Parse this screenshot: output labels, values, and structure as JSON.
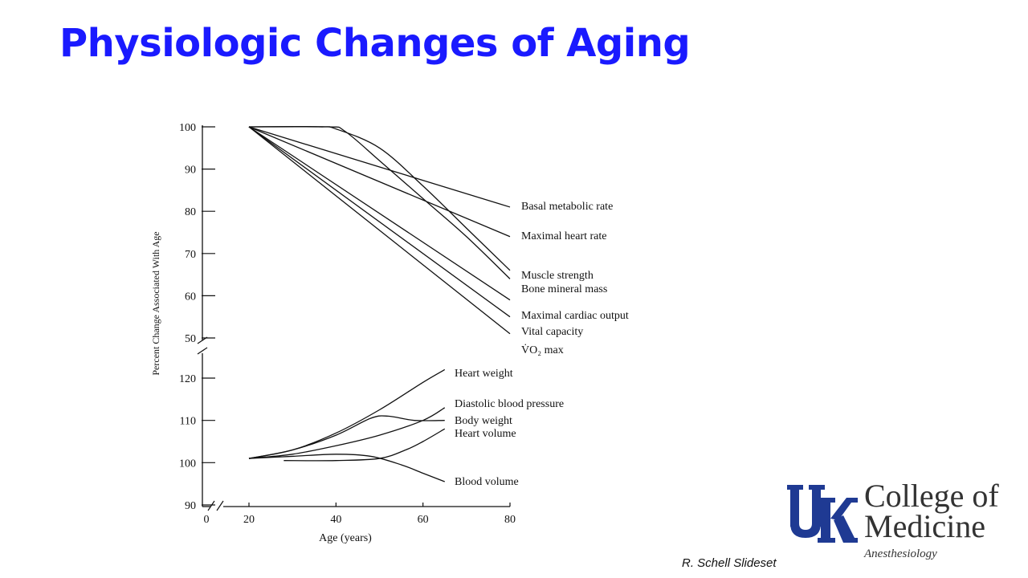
{
  "slide": {
    "title": "Physiologic Changes of Aging",
    "credit": "R. Schell Slideset"
  },
  "logo": {
    "line1": "College of",
    "line2": "Medicine",
    "department": "Anesthesiology",
    "monogram": "UK",
    "color": "#1f3a93"
  },
  "chart_data": {
    "type": "line",
    "title": "",
    "xlabel": "Age (years)",
    "ylabel": "Percent Change Associated With Age",
    "x_ticks": [
      "0",
      "20",
      "40",
      "60",
      "80"
    ],
    "xlim": [
      20,
      80
    ],
    "axis_break": true,
    "grid": false,
    "legend": "labels at line ends (right)",
    "panels": [
      {
        "name": "upper",
        "ylim": [
          50,
          100
        ],
        "y_ticks": [
          "100",
          "90",
          "80",
          "70",
          "60",
          "50"
        ],
        "series": [
          {
            "name": "Basal metabolic rate",
            "x": [
              20,
              80
            ],
            "y": [
              100,
              81
            ]
          },
          {
            "name": "Maximal heart rate",
            "x": [
              20,
              80
            ],
            "y": [
              100,
              74
            ]
          },
          {
            "name": "Muscle strength",
            "x": [
              20,
              36,
              40,
              50,
              60,
              70,
              80
            ],
            "y": [
              100,
              100,
              99.5,
              95,
              86,
              76,
              66
            ]
          },
          {
            "name": "Bone mineral mass",
            "x": [
              20,
              38,
              42,
              50,
              60,
              70,
              80
            ],
            "y": [
              100,
              100,
              99,
              92,
              83,
              74,
              64
            ]
          },
          {
            "name": "Maximal cardiac output",
            "x": [
              20,
              80
            ],
            "y": [
              100,
              59
            ]
          },
          {
            "name": "Vital capacity",
            "x": [
              20,
              80
            ],
            "y": [
              100,
              55
            ]
          },
          {
            "name": "V̇O₂ max",
            "x": [
              20,
              80
            ],
            "y": [
              100,
              51
            ]
          }
        ]
      },
      {
        "name": "lower",
        "ylim": [
          90,
          120
        ],
        "y_ticks": [
          "120",
          "110",
          "100",
          "90"
        ],
        "series": [
          {
            "name": "Heart weight",
            "x": [
              20,
              30,
              40,
              50,
              60,
              65
            ],
            "y": [
              101,
              103,
              107,
              112.5,
              119,
              122
            ]
          },
          {
            "name": "Diastolic blood pressure",
            "x": [
              20,
              30,
              40,
              50,
              60,
              65
            ],
            "y": [
              101,
              102,
              104,
              106.5,
              110,
              113
            ]
          },
          {
            "name": "Body weight",
            "x": [
              20,
              30,
              40,
              48,
              52,
              58,
              65
            ],
            "y": [
              101,
              103,
              106.5,
              110.5,
              111,
              110,
              110
            ]
          },
          {
            "name": "Heart volume",
            "x": [
              28,
              40,
              50,
              56,
              60,
              65
            ],
            "y": [
              100.5,
              100.5,
              101,
              103,
              105,
              108
            ]
          },
          {
            "name": "Blood volume",
            "x": [
              20,
              30,
              40,
              48,
              55,
              60,
              65
            ],
            "y": [
              101,
              101.5,
              102,
              101.5,
              99.5,
              97.5,
              95.5
            ]
          }
        ]
      }
    ]
  }
}
